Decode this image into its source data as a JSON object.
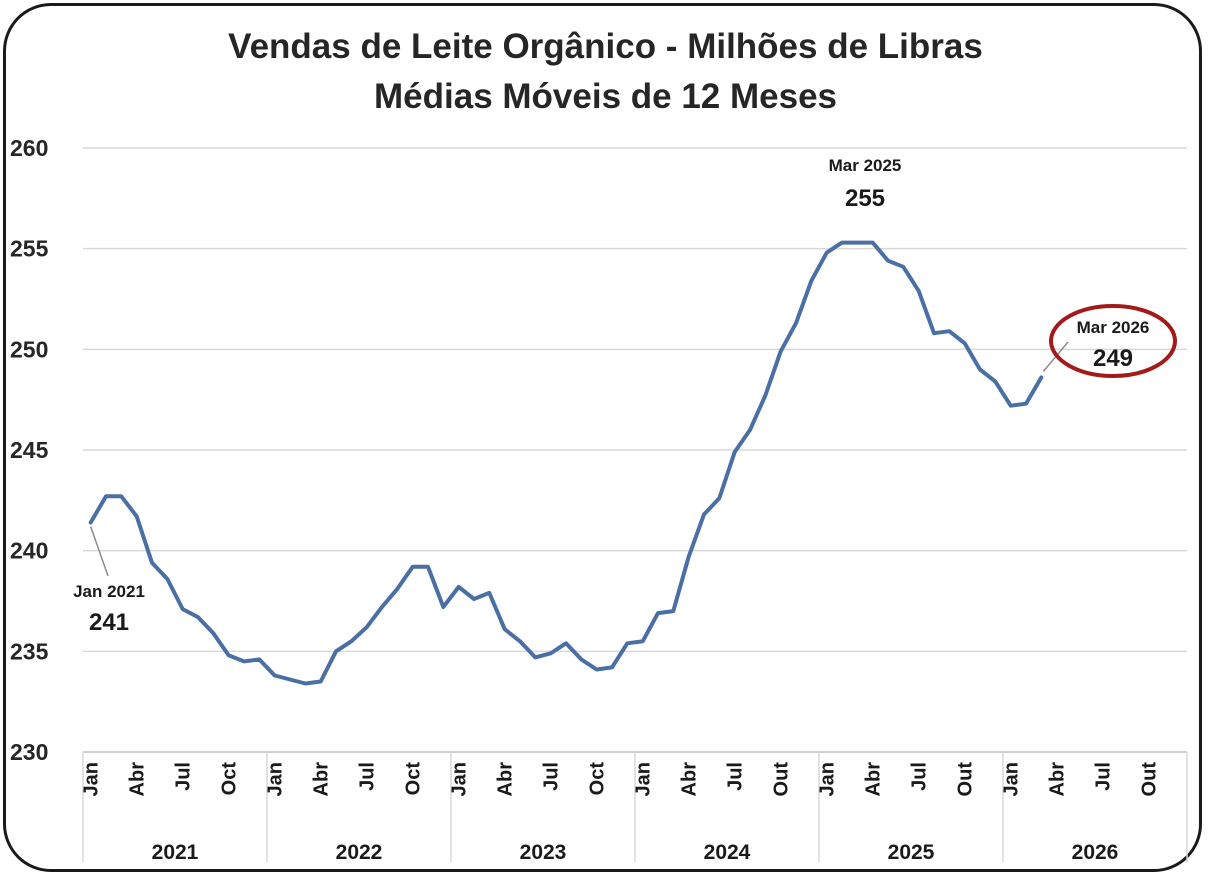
{
  "chart_data": {
    "type": "line",
    "title": "Vendas de Leite Orgânico - Milhões de Libras",
    "subtitle": "Médias Móveis de 12 Meses",
    "xlabel": "",
    "ylabel": "",
    "ylim": [
      230,
      260
    ],
    "yticks": [
      "230",
      "235",
      "240",
      "245",
      "250",
      "255",
      "260"
    ],
    "grid": true,
    "line_color": "#4a6fa5",
    "years": [
      "2021",
      "2022",
      "2023",
      "2024",
      "2025",
      "2026"
    ],
    "month_ticks": [
      "Jan",
      "Abr",
      "Jul",
      "Oct",
      "Jan",
      "Abr",
      "Jul",
      "Oct",
      "Jan",
      "Abr",
      "Jul",
      "Oct",
      "Jan",
      "Abr",
      "Jul",
      "Out",
      "Jan",
      "Abr",
      "Jul",
      "Out",
      "Jan",
      "Abr",
      "Jul",
      "Out"
    ],
    "series": [
      {
        "values": [
          241.4,
          242.7,
          242.7,
          241.7,
          239.4,
          238.6,
          237.1,
          236.7,
          235.9,
          234.8,
          234.5,
          234.6,
          233.8,
          233.6,
          233.4,
          233.5,
          235.0,
          235.5,
          236.2,
          237.2,
          238.1,
          239.2,
          239.2,
          237.2,
          238.2,
          237.6,
          237.9,
          236.1,
          235.5,
          234.7,
          234.9,
          235.4,
          234.6,
          234.1,
          234.2,
          235.4,
          235.5,
          236.9,
          237.0,
          239.7,
          241.8,
          242.6,
          244.9,
          246.0,
          247.7,
          249.9,
          251.3,
          253.4,
          254.8,
          255.3,
          255.3,
          255.3,
          254.4,
          254.1,
          252.9,
          250.8,
          250.9,
          250.3,
          249.0,
          248.4,
          247.2,
          247.3,
          248.6
        ]
      }
    ],
    "annotations": [
      {
        "label": "Jan 2021",
        "value": "241"
      },
      {
        "label": "Mar 2025",
        "value": "255"
      },
      {
        "label": "Mar 2026",
        "value": "249"
      }
    ],
    "highlight_color": "#a31a1a"
  }
}
